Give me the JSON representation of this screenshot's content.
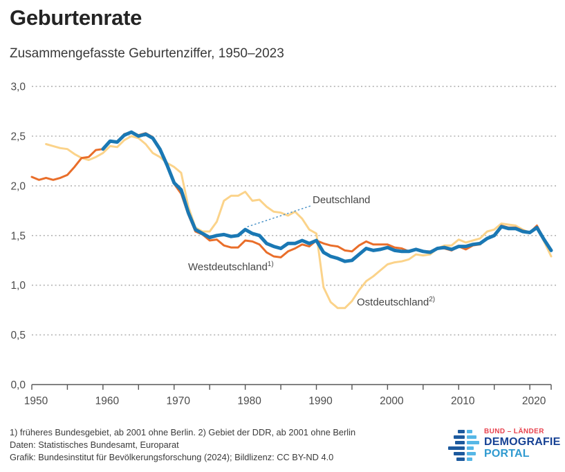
{
  "header": {
    "title": "Geburtenrate",
    "subtitle": "Zusammengefasste Geburtenziffer, 1950–2023"
  },
  "chart_data": {
    "type": "line",
    "title": "Geburtenrate",
    "subtitle": "Zusammengefasste Geburtenziffer, 1950–2023",
    "xlabel": "",
    "ylabel": "",
    "xlim": [
      1950,
      2023
    ],
    "ylim": [
      0.0,
      3.0
    ],
    "grid": "horizontal dotted gridlines at 0.5 steps",
    "legend_position": "inline annotations on lines",
    "colors": {
      "deutschland": "#1a78b4",
      "westdeutschland": "#e96e2a",
      "ostdeutschland": "#fbd38a",
      "gridline": "#b3b3b3",
      "axis": "#555555",
      "tick_label": "#4b4b4b"
    },
    "y_ticks": [
      {
        "v": 3.0,
        "label": "3,0"
      },
      {
        "v": 2.5,
        "label": "2,5"
      },
      {
        "v": 2.0,
        "label": "2,0"
      },
      {
        "v": 1.5,
        "label": "1,5"
      },
      {
        "v": 1.0,
        "label": "1,0"
      },
      {
        "v": 0.5,
        "label": "0,5"
      },
      {
        "v": 0.0,
        "label": "0,0"
      }
    ],
    "x_tick_marks": [
      1950,
      1955,
      1960,
      1965,
      1970,
      1975,
      1980,
      1985,
      1990,
      1995,
      2000,
      2005,
      2010,
      2015,
      2020,
      2023
    ],
    "x_tick_labels": [
      {
        "v": 1950,
        "label": "1950"
      },
      {
        "v": 1960,
        "label": "1960"
      },
      {
        "v": 1970,
        "label": "1970"
      },
      {
        "v": 1980,
        "label": "1980"
      },
      {
        "v": 1990,
        "label": "1990"
      },
      {
        "v": 2000,
        "label": "2000"
      },
      {
        "v": 2010,
        "label": "2010"
      },
      {
        "v": 2020,
        "label": "2020"
      }
    ],
    "series": [
      {
        "name": "Ostdeutschland",
        "footnote_marker": "2)",
        "color": "#fbd38a",
        "stroke_width": 3,
        "start_year": 1952,
        "values": [
          2.42,
          2.4,
          2.38,
          2.37,
          2.32,
          2.28,
          2.26,
          2.29,
          2.33,
          2.4,
          2.39,
          2.46,
          2.5,
          2.48,
          2.42,
          2.33,
          2.29,
          2.23,
          2.19,
          2.13,
          1.79,
          1.58,
          1.54,
          1.54,
          1.64,
          1.85,
          1.9,
          1.9,
          1.94,
          1.85,
          1.86,
          1.79,
          1.74,
          1.73,
          1.7,
          1.74,
          1.67,
          1.56,
          1.52,
          0.98,
          0.83,
          0.77,
          0.77,
          0.84,
          0.95,
          1.04,
          1.09,
          1.15,
          1.21,
          1.23,
          1.24,
          1.26,
          1.31,
          1.3,
          1.31,
          1.37,
          1.4,
          1.4,
          1.46,
          1.43,
          1.45,
          1.47,
          1.54,
          1.56,
          1.62,
          1.61,
          1.6,
          1.56,
          1.53,
          1.58,
          1.44,
          1.29
        ]
      },
      {
        "name": "Westdeutschland",
        "footnote_marker": "1)",
        "color": "#e96e2a",
        "stroke_width": 3,
        "start_year": 1950,
        "values": [
          2.09,
          2.06,
          2.08,
          2.06,
          2.08,
          2.11,
          2.19,
          2.28,
          2.29,
          2.36,
          2.37,
          2.45,
          2.44,
          2.52,
          2.54,
          2.51,
          2.53,
          2.49,
          2.38,
          2.21,
          2.02,
          1.92,
          1.71,
          1.54,
          1.51,
          1.45,
          1.46,
          1.4,
          1.38,
          1.38,
          1.45,
          1.44,
          1.41,
          1.33,
          1.29,
          1.28,
          1.34,
          1.37,
          1.41,
          1.39,
          1.45,
          1.42,
          1.4,
          1.39,
          1.35,
          1.34,
          1.4,
          1.44,
          1.41,
          1.41,
          1.41,
          1.38,
          1.37,
          1.34,
          1.36,
          1.34,
          1.34,
          1.37,
          1.37,
          1.35,
          1.39,
          1.36,
          1.4,
          1.41,
          1.47,
          1.5,
          1.6,
          1.58,
          1.58,
          1.55,
          1.53,
          1.6,
          1.46,
          1.36
        ]
      },
      {
        "name": "Deutschland",
        "footnote_marker": "",
        "color": "#1a78b4",
        "stroke_width": 5,
        "start_year": 1960,
        "values": [
          2.37,
          2.45,
          2.44,
          2.51,
          2.54,
          2.5,
          2.52,
          2.48,
          2.37,
          2.21,
          2.03,
          1.96,
          1.73,
          1.56,
          1.52,
          1.48,
          1.5,
          1.51,
          1.49,
          1.5,
          1.56,
          1.52,
          1.5,
          1.42,
          1.39,
          1.37,
          1.42,
          1.42,
          1.45,
          1.42,
          1.45,
          1.33,
          1.29,
          1.27,
          1.24,
          1.25,
          1.31,
          1.37,
          1.35,
          1.36,
          1.38,
          1.35,
          1.34,
          1.34,
          1.36,
          1.34,
          1.33,
          1.37,
          1.38,
          1.36,
          1.39,
          1.39,
          1.41,
          1.42,
          1.47,
          1.5,
          1.59,
          1.57,
          1.57,
          1.54,
          1.53,
          1.58,
          1.46,
          1.35
        ]
      }
    ],
    "annotations": [
      {
        "text": "Deutschland",
        "sup": "",
        "anchor_year": 1980,
        "anchor_value": 1.56,
        "leader": "dotted blue"
      },
      {
        "text": "Westdeutschland",
        "sup": "1)",
        "leader": "none"
      },
      {
        "text": "Ostdeutschland",
        "sup": "2)",
        "leader": "none"
      }
    ]
  },
  "annotations": {
    "deutschland": "Deutschland",
    "west": "Westdeutschland",
    "west_sup": "1)",
    "ost": "Ostdeutschland",
    "ost_sup": "2)"
  },
  "footer": {
    "line1": "1) früheres Bundesgebiet, ab 2001 ohne Berlin. 2) Gebiet der DDR, ab 2001 ohne Berlin",
    "line2": "Daten: Statistisches Bundesamt, Europarat",
    "line3": "Grafik: Bundesinstitut für Bevölkerungsforschung (2024); Bildlizenz: CC BY-ND 4.0"
  },
  "logo": {
    "line1": "BUND – LÄNDER",
    "line2": "DEMOGRAFIE",
    "line3": "PORTAL",
    "color_line1": "#e8414d",
    "color_line2": "#164194",
    "color_line3": "#2f9ad0"
  }
}
